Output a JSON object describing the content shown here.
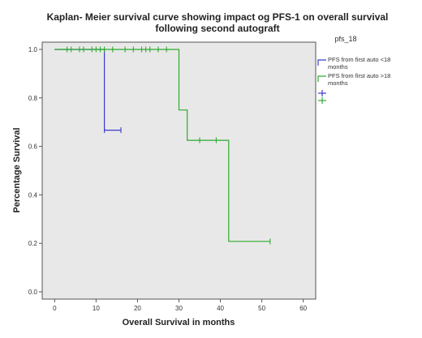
{
  "chart_data": {
    "type": "line",
    "title_lines": [
      "Kaplan- Meier survival curve showing impact og PFS-1 on overall survival",
      "following second autograft"
    ],
    "xlabel": "Overall Survival in months",
    "ylabel": "Percentage Survival",
    "xlim": [
      -3,
      63
    ],
    "ylim": [
      -0.03,
      1.03
    ],
    "xticks": [
      0,
      10,
      20,
      30,
      40,
      50,
      60
    ],
    "yticks": [
      0.0,
      0.2,
      0.4,
      0.6,
      0.8,
      1.0
    ],
    "ytick_labels": [
      "0.0",
      "0.2",
      "0.4",
      "0.6",
      "0.8",
      "1.0"
    ],
    "grid": false,
    "plot_background": "#e8e8e8",
    "legend": {
      "title": "pfs_18",
      "placement": "right",
      "entries": [
        {
          "label_lines": [
            "PFS from first auto <18",
            "months"
          ],
          "color": "#3b3bcc"
        },
        {
          "label_lines": [
            "PFS from first auto >18",
            "months"
          ],
          "color": "#2eaa2e"
        }
      ]
    },
    "series": [
      {
        "name": "PFS from first auto <18 months",
        "color": "#3b3bcc",
        "steps": [
          [
            0,
            1.0
          ],
          [
            12,
            1.0
          ],
          [
            12,
            0.667
          ],
          [
            16,
            0.667
          ]
        ],
        "censored": [
          [
            12,
            0.667
          ],
          [
            16,
            0.667
          ]
        ]
      },
      {
        "name": "PFS from first auto >18 months",
        "color": "#2eaa2e",
        "steps": [
          [
            0,
            1.0
          ],
          [
            30,
            1.0
          ],
          [
            30,
            0.75
          ],
          [
            32,
            0.75
          ],
          [
            32,
            0.625
          ],
          [
            42,
            0.625
          ],
          [
            42,
            0.208
          ],
          [
            52,
            0.208
          ]
        ],
        "censored": [
          [
            3,
            1.0
          ],
          [
            4,
            1.0
          ],
          [
            6,
            1.0
          ],
          [
            7,
            1.0
          ],
          [
            9,
            1.0
          ],
          [
            10,
            1.0
          ],
          [
            11,
            1.0
          ],
          [
            12,
            1.0
          ],
          [
            14,
            1.0
          ],
          [
            17,
            1.0
          ],
          [
            19,
            1.0
          ],
          [
            21,
            1.0
          ],
          [
            22,
            1.0
          ],
          [
            23,
            1.0
          ],
          [
            25,
            1.0
          ],
          [
            27,
            1.0
          ],
          [
            35,
            0.625
          ],
          [
            39,
            0.625
          ],
          [
            52,
            0.208
          ]
        ]
      }
    ]
  }
}
